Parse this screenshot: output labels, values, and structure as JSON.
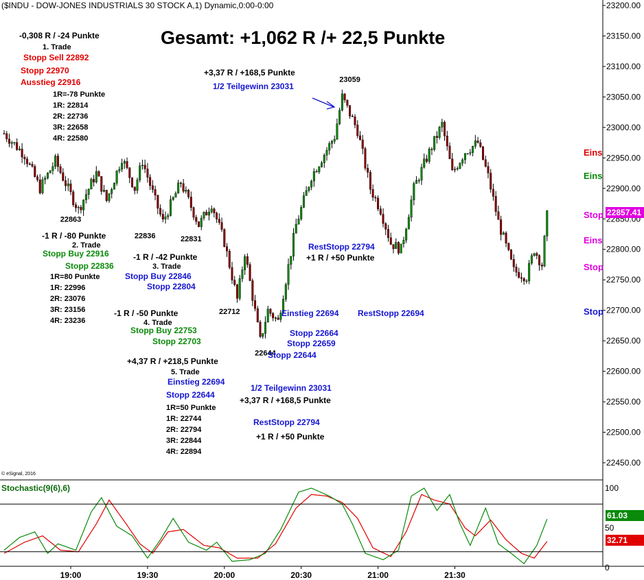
{
  "header": {
    "title": "($INDU - DOW-JONES INDUSTRIALS 30 STOCK A,1) Dynamic,0:00-0:00",
    "headline": "Gesamt: +1,062 R /+ 22,5 Punkte",
    "copyright": "© eSignal, 2016"
  },
  "price_tag": {
    "value": "22857.41",
    "color": "#e000e0"
  },
  "stoch_tags": {
    "k": "61.03",
    "d": "32.71",
    "k_color": "#0a8a0a",
    "d_color": "#e00000"
  },
  "edge_labels": [
    {
      "text": "Eins",
      "color": "#e00000",
      "y": 215
    },
    {
      "text": "Eins",
      "color": "#0a8a0a",
      "y": 249
    },
    {
      "text": "Stop",
      "color": "#e000e0",
      "y": 306
    },
    {
      "text": "Eins",
      "color": "#e000e0",
      "y": 343
    },
    {
      "text": "Stop",
      "color": "#e000e0",
      "y": 382
    },
    {
      "text": "Stop",
      "color": "#1515d0",
      "y": 447
    }
  ],
  "trades": {
    "t1": {
      "result": "-0,308 R / -24 Punkte",
      "name": "1. Trade",
      "lines_red": [
        "Stopp Sell 22892",
        "Stopp 22970",
        "Ausstieg 22916"
      ],
      "levels": [
        "1R=-78 Punkte",
        "1R: 22814",
        "2R: 22736",
        "3R: 22658",
        "4R: 22580"
      ]
    },
    "t2": {
      "result": "-1 R / -80 Punkte",
      "name": "2. Trade",
      "lines_green": [
        "Stopp Buy 22916",
        "Stopp 22836"
      ],
      "levels": [
        "1R=80 Punkte",
        "1R: 22996",
        "2R: 23076",
        "3R: 23156",
        "4R: 23236"
      ]
    },
    "t3": {
      "result": "-1 R / -42 Punkte",
      "name": "3. Trade",
      "lines_blue": [
        "Stopp Buy 22846",
        "Stopp 22804"
      ]
    },
    "t4": {
      "result": "-1 R / -50 Punkte",
      "name": "4. Trade",
      "lines_green": [
        "Stopp Buy 22753",
        "Stopp 22703"
      ]
    },
    "t5": {
      "result": "+4,37 R / +218,5 Punkte",
      "name": "5. Trade",
      "lines_blue": [
        "Einstieg 22694",
        "Stopp 22644"
      ],
      "levels": [
        "1R=50 Punkte",
        "1R: 22744",
        "2R: 22794",
        "3R: 22844",
        "4R: 22894"
      ]
    }
  },
  "annotations": {
    "top_result": "+3,37 R / +168,5 Punkte",
    "top_partial": "1/2 Teilgewinn 23031",
    "reststopp": "RestStopp 22794",
    "reststopp_result": "+1 R / +50 Punkte",
    "einstieg": "Einstieg 22694",
    "reststopp2": "RestStopp 22694",
    "stopps": [
      "Stopp 22664",
      "Stopp 22659",
      "Stopp 22644"
    ],
    "mid_partial": "1/2 Teilgewinn 23031",
    "mid_result": "+3,37 R / +168,5 Punkte",
    "low_reststopp": "RestStopp 22794",
    "low_result": "+1 R / +50 Punkte"
  },
  "chart_data": {
    "type": "candlestick",
    "title": "($INDU - DOW-JONES INDUSTRIALS 30 STOCK A,1) Dynamic,0:00-0:00",
    "interval_minutes": 1,
    "price_axis": {
      "ylim": [
        22425,
        23210
      ],
      "ticks": [
        "22450.00",
        "22500.00",
        "22550.00",
        "22600.00",
        "22650.00",
        "22700.00",
        "22750.00",
        "22800.00",
        "22850.00",
        "22900.00",
        "22950.00",
        "23000.00",
        "23050.00",
        "23100.00",
        "23150.00",
        "23200.00"
      ],
      "tick_values": [
        22450,
        22500,
        22550,
        22600,
        22650,
        22700,
        22750,
        22800,
        22850,
        22900,
        22950,
        23000,
        23050,
        23100,
        23150,
        23200
      ]
    },
    "time_axis": {
      "labels": [
        "19:00",
        "19:30",
        "20:00",
        "20:30",
        "21:00",
        "21:30"
      ],
      "label_minutes": [
        0,
        30,
        60,
        90,
        120,
        150
      ],
      "start_minute": -26,
      "end_minute": 172
    },
    "anchors": [
      {
        "t": -26,
        "p": 22990
      },
      {
        "t": -18,
        "p": 22955
      },
      {
        "t": -12,
        "p": 22900
      },
      {
        "t": -6,
        "p": 22945
      },
      {
        "t": 0,
        "p": 22890
      },
      {
        "t": 3,
        "p": 22865
      },
      {
        "t": 10,
        "p": 22925
      },
      {
        "t": 14,
        "p": 22880
      },
      {
        "t": 20,
        "p": 22950
      },
      {
        "t": 25,
        "p": 22900
      },
      {
        "t": 28,
        "p": 22945
      },
      {
        "t": 33,
        "p": 22880
      },
      {
        "t": 36,
        "p": 22845
      },
      {
        "t": 43,
        "p": 22910
      },
      {
        "t": 50,
        "p": 22840
      },
      {
        "t": 55,
        "p": 22875
      },
      {
        "t": 60,
        "p": 22812
      },
      {
        "t": 65,
        "p": 22718
      },
      {
        "t": 68,
        "p": 22795
      },
      {
        "t": 74,
        "p": 22650
      },
      {
        "t": 77,
        "p": 22700
      },
      {
        "t": 81,
        "p": 22682
      },
      {
        "t": 88,
        "p": 22840
      },
      {
        "t": 94,
        "p": 22920
      },
      {
        "t": 103,
        "p": 22985
      },
      {
        "t": 106,
        "p": 23050
      },
      {
        "t": 112,
        "p": 22995
      },
      {
        "t": 117,
        "p": 22900
      },
      {
        "t": 121,
        "p": 22865
      },
      {
        "t": 125,
        "p": 22810
      },
      {
        "t": 129,
        "p": 22800
      },
      {
        "t": 134,
        "p": 22900
      },
      {
        "t": 139,
        "p": 22950
      },
      {
        "t": 145,
        "p": 23005
      },
      {
        "t": 149,
        "p": 22925
      },
      {
        "t": 154,
        "p": 22960
      },
      {
        "t": 159,
        "p": 22975
      },
      {
        "t": 163,
        "p": 22920
      },
      {
        "t": 167,
        "p": 22845
      },
      {
        "t": 173,
        "p": 22765
      },
      {
        "t": 178,
        "p": 22755
      },
      {
        "t": 181,
        "p": 22800
      },
      {
        "t": 184,
        "p": 22775
      },
      {
        "t": 186,
        "p": 22855
      }
    ],
    "price_labels": [
      {
        "text": "22863",
        "t": 0,
        "p": 22863
      },
      {
        "text": "22836",
        "t": 29,
        "p": 22836
      },
      {
        "text": "22831",
        "t": 47,
        "p": 22831
      },
      {
        "text": "22712",
        "t": 62,
        "p": 22712
      },
      {
        "text": "22644",
        "t": 76,
        "p": 22644
      },
      {
        "text": "23059",
        "t": 109,
        "p": 23059
      }
    ],
    "last_price": 22857.41,
    "stochastic": {
      "name": "Stochastic(9(6),6)",
      "ylim": [
        0,
        100
      ],
      "levels": [
        80,
        20
      ],
      "ticks": [
        "100",
        "50",
        "0"
      ],
      "k_last": 61.03,
      "d_last": 32.71,
      "k_anchors": [
        {
          "t": -26,
          "v": 22
        },
        {
          "t": -20,
          "v": 38
        },
        {
          "t": -14,
          "v": 45
        },
        {
          "t": -9,
          "v": 18
        },
        {
          "t": -5,
          "v": 30
        },
        {
          "t": 2,
          "v": 22
        },
        {
          "t": 8,
          "v": 70
        },
        {
          "t": 12,
          "v": 88
        },
        {
          "t": 18,
          "v": 52
        },
        {
          "t": 24,
          "v": 40
        },
        {
          "t": 30,
          "v": 12
        },
        {
          "t": 35,
          "v": 35
        },
        {
          "t": 40,
          "v": 62
        },
        {
          "t": 46,
          "v": 32
        },
        {
          "t": 53,
          "v": 22
        },
        {
          "t": 57,
          "v": 32
        },
        {
          "t": 63,
          "v": 8
        },
        {
          "t": 70,
          "v": 10
        },
        {
          "t": 76,
          "v": 18
        },
        {
          "t": 82,
          "v": 48
        },
        {
          "t": 89,
          "v": 95
        },
        {
          "t": 94,
          "v": 100
        },
        {
          "t": 101,
          "v": 90
        },
        {
          "t": 106,
          "v": 80
        },
        {
          "t": 110,
          "v": 55
        },
        {
          "t": 115,
          "v": 18
        },
        {
          "t": 122,
          "v": 10
        },
        {
          "t": 128,
          "v": 22
        },
        {
          "t": 133,
          "v": 90
        },
        {
          "t": 138,
          "v": 100
        },
        {
          "t": 143,
          "v": 72
        },
        {
          "t": 148,
          "v": 92
        },
        {
          "t": 152,
          "v": 55
        },
        {
          "t": 156,
          "v": 28
        },
        {
          "t": 162,
          "v": 75
        },
        {
          "t": 167,
          "v": 30
        },
        {
          "t": 172,
          "v": 18
        },
        {
          "t": 177,
          "v": 5
        },
        {
          "t": 182,
          "v": 28
        },
        {
          "t": 186,
          "v": 61
        }
      ],
      "d_anchors": [
        {
          "t": -26,
          "v": 18
        },
        {
          "t": -18,
          "v": 32
        },
        {
          "t": -11,
          "v": 40
        },
        {
          "t": -4,
          "v": 22
        },
        {
          "t": 3,
          "v": 20
        },
        {
          "t": 10,
          "v": 55
        },
        {
          "t": 15,
          "v": 85
        },
        {
          "t": 21,
          "v": 58
        },
        {
          "t": 27,
          "v": 30
        },
        {
          "t": 32,
          "v": 18
        },
        {
          "t": 38,
          "v": 45
        },
        {
          "t": 44,
          "v": 48
        },
        {
          "t": 52,
          "v": 28
        },
        {
          "t": 58,
          "v": 25
        },
        {
          "t": 65,
          "v": 12
        },
        {
          "t": 73,
          "v": 12
        },
        {
          "t": 80,
          "v": 30
        },
        {
          "t": 88,
          "v": 75
        },
        {
          "t": 94,
          "v": 92
        },
        {
          "t": 100,
          "v": 90
        },
        {
          "t": 106,
          "v": 82
        },
        {
          "t": 112,
          "v": 62
        },
        {
          "t": 118,
          "v": 25
        },
        {
          "t": 125,
          "v": 14
        },
        {
          "t": 131,
          "v": 45
        },
        {
          "t": 137,
          "v": 92
        },
        {
          "t": 142,
          "v": 85
        },
        {
          "t": 148,
          "v": 80
        },
        {
          "t": 154,
          "v": 50
        },
        {
          "t": 158,
          "v": 40
        },
        {
          "t": 164,
          "v": 60
        },
        {
          "t": 170,
          "v": 35
        },
        {
          "t": 176,
          "v": 18
        },
        {
          "t": 181,
          "v": 12
        },
        {
          "t": 186,
          "v": 33
        }
      ]
    }
  }
}
